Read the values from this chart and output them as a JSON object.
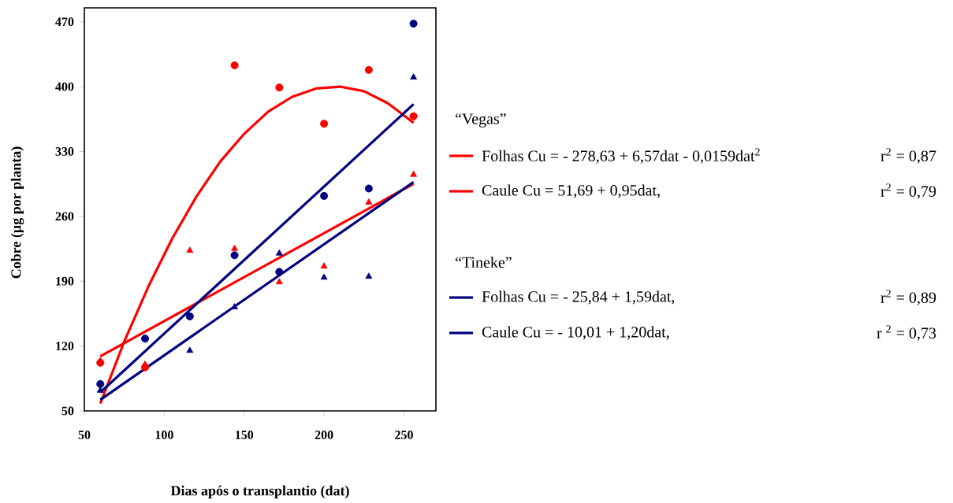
{
  "chart_data": {
    "type": "scatter",
    "xlabel": "Dias após o transplantio (dat)",
    "ylabel": "Cobre (µg  por planta)",
    "xlim": [
      50,
      270
    ],
    "xticks": [
      50,
      100,
      150,
      200,
      250
    ],
    "ylim": [
      50,
      485
    ],
    "yticks": [
      50,
      120,
      190,
      260,
      330,
      400,
      470
    ],
    "grid": false,
    "legend": "right",
    "annotations": [
      "“Vegas”",
      "“Tineke”",
      "r$^{2}$ = 0,87",
      "r$^{2}$ = 0,79",
      "r$^{2}$ = 0,89",
      "r $^{2}$ = 0,73"
    ],
    "series": [
      {
        "marker": "circle",
        "color": "#ff0000",
        "x": [
          60,
          88,
          144,
          172,
          200,
          228,
          256
        ],
        "values": [
          102,
          97,
          423,
          399,
          360,
          418,
          368
        ]
      },
      {
        "marker": "triangle",
        "color": "#ff0000",
        "x": [
          60,
          88,
          116,
          144,
          172,
          200,
          228,
          256
        ],
        "values": [
          104,
          100,
          223,
          225,
          189,
          206,
          275,
          305
        ]
      },
      {
        "marker": "circle",
        "color": "#000080",
        "x": [
          60,
          88,
          116,
          144,
          172,
          200,
          228,
          256
        ],
        "values": [
          79,
          128,
          152,
          218,
          200,
          282,
          290,
          468
        ]
      },
      {
        "marker": "triangle",
        "color": "#000080",
        "x": [
          60,
          116,
          144,
          172,
          200,
          228,
          256
        ],
        "values": [
          72,
          115,
          162,
          220,
          194,
          195,
          410
        ]
      },
      {
        "type": "line",
        "name": "Folhas  Cu = - 278,63 + 6,57dat - 0,0159dat$^{2}$",
        "color": "#ff0000",
        "x": [
          60,
          75,
          90,
          105,
          120,
          135,
          150,
          165,
          180,
          195,
          210,
          225,
          240,
          256
        ],
        "values": [
          58,
          125,
          184,
          236,
          281,
          319,
          349,
          373,
          389,
          398,
          400,
          395,
          382,
          361
        ]
      },
      {
        "type": "line",
        "name": "Caule   Cu = 51,69 + 0,95dat,",
        "color": "#ff0000",
        "x": [
          60,
          256
        ],
        "values": [
          109,
          295
        ]
      },
      {
        "type": "line",
        "name": "Folhas  Cu = - 25,84 + 1,59dat,",
        "color": "#000080",
        "x": [
          60,
          256
        ],
        "values": [
          70,
          381
        ]
      },
      {
        "type": "line",
        "name": "Caule    Cu = - 10,01 + 1,20dat,",
        "color": "#000080",
        "x": [
          60,
          256
        ],
        "values": [
          62,
          297
        ]
      }
    ]
  }
}
